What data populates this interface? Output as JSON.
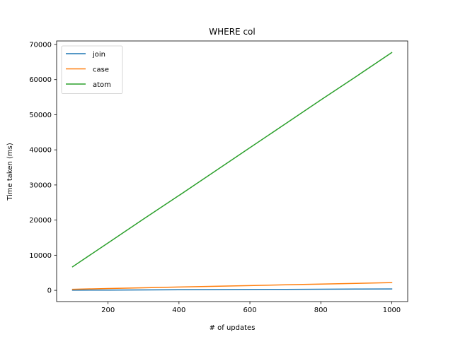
{
  "chart_data": {
    "type": "line",
    "title": "WHERE col",
    "xlabel": "# of updates",
    "ylabel": "Time taken (ms)",
    "xlim": [
      55,
      1045
    ],
    "ylim": [
      -3200,
      71000
    ],
    "xticks": [
      200,
      400,
      600,
      800,
      1000
    ],
    "yticks": [
      0,
      10000,
      20000,
      30000,
      40000,
      50000,
      60000,
      70000
    ],
    "grid": false,
    "legend_position": "top-left",
    "x": [
      100,
      200,
      300,
      400,
      500,
      600,
      700,
      800,
      900,
      1000
    ],
    "series": [
      {
        "name": "join",
        "color": "#1f77b4",
        "values": [
          40,
          80,
          120,
          160,
          200,
          240,
          280,
          320,
          360,
          400
        ]
      },
      {
        "name": "case",
        "color": "#ff7f0e",
        "values": [
          300,
          510,
          720,
          940,
          1150,
          1360,
          1570,
          1780,
          1990,
          2200
        ]
      },
      {
        "name": "atom",
        "color": "#2ca02c",
        "values": [
          6700,
          13500,
          20300,
          27000,
          33800,
          40600,
          47400,
          54200,
          60900,
          67700
        ]
      }
    ]
  }
}
